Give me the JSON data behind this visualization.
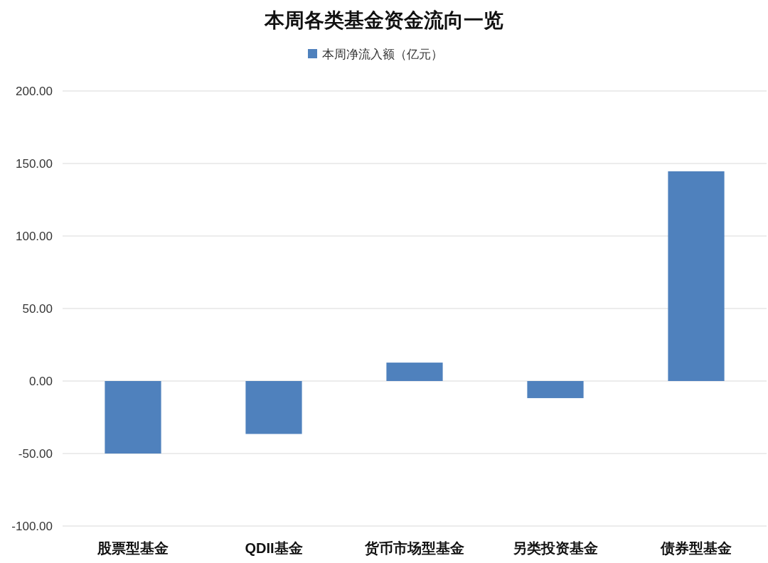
{
  "chart_data": {
    "type": "bar",
    "title": "本周各类基金资金流向一览",
    "categories": [
      "股票型基金",
      "QDII基金",
      "货币市场型基金",
      "另类投资基金",
      "债券型基金"
    ],
    "series": [
      {
        "name": "本周净流入额（亿元）",
        "color": "#4f81bd",
        "values": [
          -50.0,
          -36.5,
          12.7,
          -11.8,
          144.6
        ]
      }
    ],
    "ylim": [
      -100,
      200
    ],
    "yticks": [
      {
        "value": -100,
        "label": "-100.00"
      },
      {
        "value": -50,
        "label": "-50.00"
      },
      {
        "value": 0,
        "label": "0.00"
      },
      {
        "value": 50,
        "label": "50.00"
      },
      {
        "value": 100,
        "label": "100.00"
      },
      {
        "value": 150,
        "label": "150.00"
      },
      {
        "value": 200,
        "label": "200.00"
      }
    ],
    "grid": "y",
    "legend": "top"
  }
}
